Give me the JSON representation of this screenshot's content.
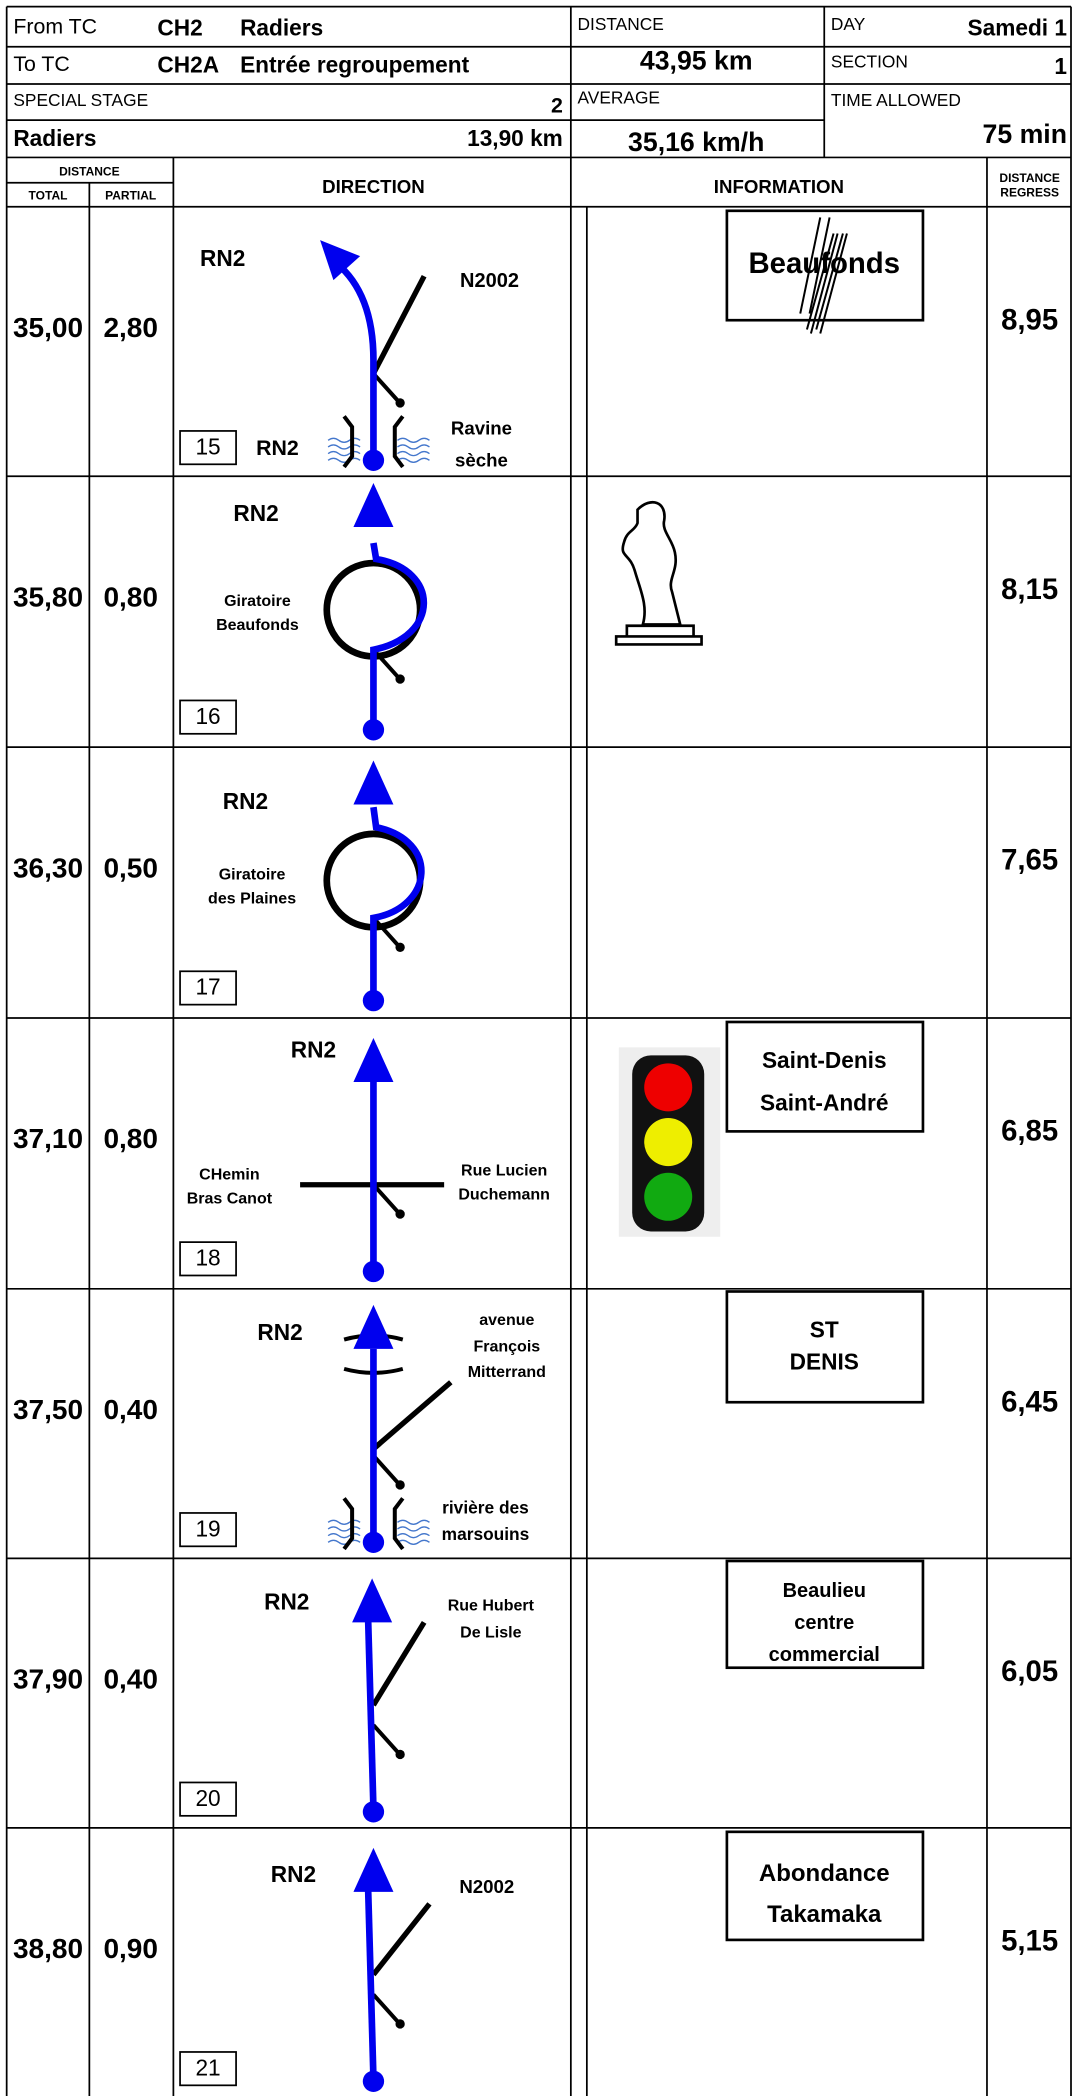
{
  "header": {
    "from_label": "From TC",
    "from_code": "CH2",
    "from_name": "Radiers",
    "to_label": "To TC",
    "to_code": "CH2A",
    "to_name": "Entrée regroupement",
    "distance_label": "DISTANCE",
    "distance": "43,95 km",
    "day_label": "DAY",
    "day": "Samedi 1",
    "section_label": "SECTION",
    "section": "1",
    "stage_label": "SPECIAL STAGE",
    "stage": "2",
    "stage_name": "Radiers",
    "stage_length": "13,90 km",
    "average_label": "AVERAGE",
    "average": "35,16 km/h",
    "time_label": "TIME ALLOWED",
    "time": "75 min"
  },
  "columns": {
    "distance": "DISTANCE",
    "total": "TOTAL",
    "partial": "PARTIAL",
    "direction": "DIRECTION",
    "information": "INFORMATION",
    "regress": [
      "DISTANCE",
      "REGRESS"
    ]
  },
  "rows": [
    {
      "total": "35,00",
      "partial": "2,80",
      "number": "15",
      "direction": [
        "RN2",
        "N2002",
        "RN2",
        "Ravine",
        "sèche"
      ],
      "information": [
        "Beaufonds"
      ],
      "regress": "8,95"
    },
    {
      "total": "35,80",
      "partial": "0,80",
      "number": "16",
      "direction": [
        "RN2",
        "Giratoire",
        "Beaufonds"
      ],
      "information": [],
      "regress": "8,15"
    },
    {
      "total": "36,30",
      "partial": "0,50",
      "number": "17",
      "direction": [
        "RN2",
        "Giratoire",
        "des Plaines"
      ],
      "information": [],
      "regress": "7,65"
    },
    {
      "total": "37,10",
      "partial": "0,80",
      "number": "18",
      "direction": [
        "RN2",
        "CHemin",
        "Bras Canot",
        "Rue Lucien",
        "Duchemann"
      ],
      "information": [
        "Saint-Denis",
        "Saint-André"
      ],
      "regress": "6,85"
    },
    {
      "total": "37,50",
      "partial": "0,40",
      "number": "19",
      "direction": [
        "RN2",
        "avenue",
        "François",
        "Mitterrand",
        "rivière des",
        "marsouins"
      ],
      "information": [
        "ST",
        "DENIS"
      ],
      "regress": "6,45"
    },
    {
      "total": "37,90",
      "partial": "0,40",
      "number": "20",
      "direction": [
        "RN2",
        "Rue Hubert",
        "De Lisle"
      ],
      "information": [
        "Beaulieu",
        "centre",
        "commercial"
      ],
      "regress": "6,05"
    },
    {
      "total": "38,80",
      "partial": "0,90",
      "number": "21",
      "direction": [
        "RN2",
        "N2002"
      ],
      "information": [
        "Abondance",
        "Takamaka"
      ],
      "regress": "5,15"
    }
  ]
}
